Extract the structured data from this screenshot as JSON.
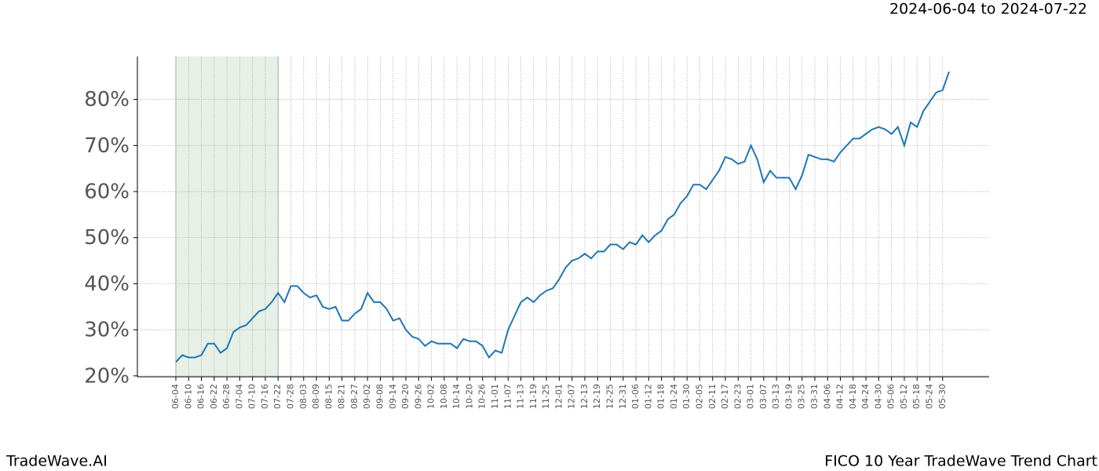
{
  "chart_data": {
    "type": "line",
    "subtitle": "2024-06-04 to 2024-07-22",
    "footer_left": "TradeWave.AI",
    "footer_right": "FICO 10 Year TradeWave Trend Chart",
    "categories": [
      "06-04",
      null,
      "06-10",
      null,
      "06-16",
      null,
      "06-22",
      null,
      "06-28",
      null,
      "07-04",
      null,
      "07-10",
      null,
      "07-16",
      null,
      "07-22",
      null,
      "07-28",
      null,
      "08-03",
      null,
      "08-09",
      null,
      "08-15",
      null,
      "08-21",
      null,
      "08-27",
      null,
      "09-02",
      null,
      "09-08",
      null,
      "09-14",
      null,
      "09-20",
      null,
      "09-26",
      null,
      "10-02",
      null,
      "10-08",
      null,
      "10-14",
      null,
      "10-20",
      null,
      "10-26",
      null,
      "11-01",
      null,
      "11-07",
      null,
      "11-13",
      null,
      "11-19",
      null,
      "11-25",
      null,
      "12-01",
      null,
      "12-07",
      null,
      "12-13",
      null,
      "12-19",
      null,
      "12-25",
      null,
      "12-31",
      null,
      "01-06",
      null,
      "01-12",
      null,
      "01-18",
      null,
      "01-24",
      null,
      "01-30",
      null,
      "02-05",
      null,
      "02-11",
      null,
      "02-17",
      null,
      "02-23",
      null,
      "03-01",
      null,
      "03-07",
      null,
      "03-13",
      null,
      "03-19",
      null,
      "03-25",
      null,
      "03-31",
      null,
      "04-06",
      null,
      "04-12",
      null,
      "04-18",
      null,
      "04-24",
      null,
      "04-30",
      null,
      "05-06",
      null,
      "05-12",
      null,
      "05-18",
      null,
      "05-24",
      null,
      "05-30",
      null
    ],
    "series": [
      {
        "color": "#1f77b4",
        "values": [
          23,
          24.5,
          24,
          24,
          24.5,
          27,
          27,
          25,
          26,
          29.5,
          30.5,
          31,
          32.5,
          34,
          34.5,
          36,
          38,
          36,
          39.5,
          39.5,
          38,
          37,
          37.5,
          35,
          34.5,
          35,
          32,
          32,
          33.5,
          34.5,
          38,
          36,
          36,
          34.5,
          32,
          32.5,
          30,
          28.5,
          28,
          26.5,
          27.5,
          27,
          27,
          27,
          26,
          28,
          27.5,
          27.5,
          26.5,
          24,
          25.5,
          25,
          30,
          33,
          36,
          37,
          36,
          37.5,
          38.5,
          39,
          41,
          43.5,
          45,
          45.5,
          46.5,
          45.5,
          47,
          47,
          48.5,
          48.5,
          47.5,
          49,
          48.5,
          50.5,
          49,
          50.5,
          51.5,
          54,
          55,
          57.5,
          59,
          61.5,
          61.5,
          60.5,
          62.5,
          64.5,
          67.5,
          67,
          66,
          66.5,
          70,
          67,
          62,
          64.5,
          63,
          63,
          63,
          60.5,
          63.5,
          68,
          67.5,
          67,
          67,
          66.5,
          68.5,
          70,
          71.5,
          71.5,
          72.5,
          73.5,
          74,
          73.5,
          72.5,
          74,
          70,
          75,
          74,
          77.5,
          79.5,
          81.5,
          82,
          86
        ]
      }
    ],
    "highlight": [
      "06-04",
      "07-22"
    ],
    "highlight_color": "#e6f0e6",
    "ylim": [
      19.8,
      89.3
    ],
    "yticks": [
      {
        "value": 20,
        "label": "20%"
      },
      {
        "value": 30,
        "label": "30%"
      },
      {
        "value": 40,
        "label": "40%"
      },
      {
        "value": 50,
        "label": "50%"
      },
      {
        "value": 60,
        "label": "60%"
      },
      {
        "value": 70,
        "label": "70%"
      },
      {
        "value": 80,
        "label": "80%"
      }
    ],
    "grid": true
  }
}
